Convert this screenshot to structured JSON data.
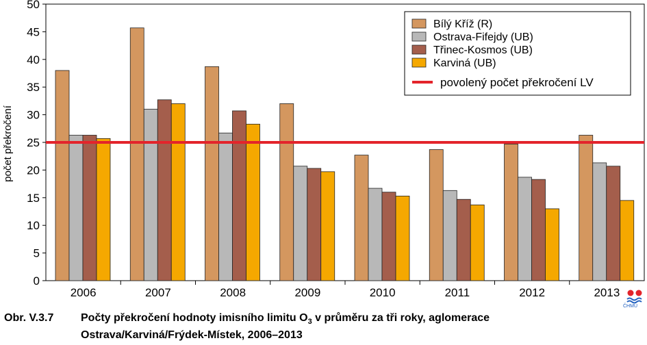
{
  "chart_data": {
    "type": "bar",
    "categories": [
      "2006",
      "2007",
      "2008",
      "2009",
      "2010",
      "2011",
      "2012",
      "2013"
    ],
    "series": [
      {
        "name": "Bílý Kříž (R)",
        "color": "#D4975F",
        "values": [
          38.0,
          45.7,
          38.7,
          32.0,
          22.7,
          23.7,
          24.7,
          26.3
        ]
      },
      {
        "name": "Ostrava-Fifejdy (UB)",
        "color": "#B8B8B8",
        "values": [
          26.3,
          31.0,
          26.7,
          20.7,
          16.7,
          16.3,
          18.7,
          21.3
        ]
      },
      {
        "name": "Třinec-Kosmos (UB)",
        "color": "#A45E4C",
        "values": [
          26.3,
          32.7,
          30.7,
          20.3,
          16.0,
          14.7,
          18.3,
          20.7
        ]
      },
      {
        "name": "Karviná (UB)",
        "color": "#F5A800",
        "values": [
          25.7,
          32.0,
          28.3,
          19.7,
          15.3,
          13.7,
          13.0,
          14.5
        ]
      }
    ],
    "limit": {
      "name": "povolený počet překročení LV",
      "value": 25,
      "color": "#E3242B"
    },
    "ylabel": "počet překročení",
    "ylim": [
      0,
      50
    ],
    "yticks": [
      "0",
      "5",
      "10",
      "15",
      "20",
      "25",
      "30",
      "35",
      "40",
      "45",
      "50"
    ],
    "grid": false,
    "legend": "top-right"
  },
  "caption": {
    "number": "Obr. V.3.7",
    "line1": "Počty překročení hodnoty imisního limitu O",
    "subscript": "3",
    "line1_end": " v průměru za tři roky, aglomerace",
    "line2": "Ostrava/Karviná/Frýdek-Místek, 2006–2013"
  },
  "logo": {
    "text": "ČHMÚ",
    "icon": "chmu-logo-icon"
  }
}
